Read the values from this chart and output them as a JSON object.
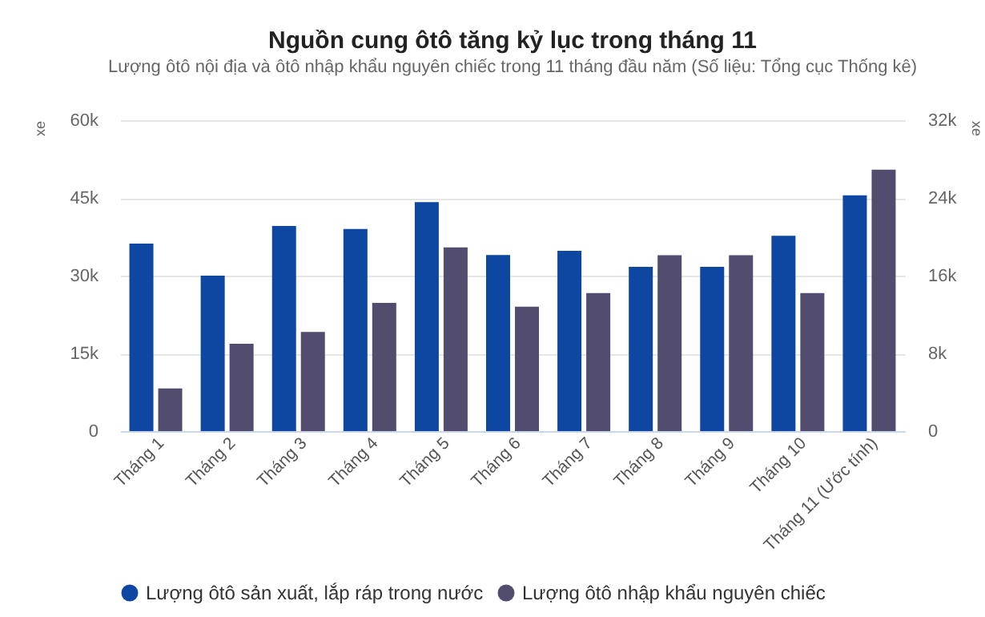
{
  "chart_data": {
    "type": "bar",
    "title": "Nguồn cung ôtô tăng kỷ lục trong tháng 11",
    "subtitle": "Lượng ôtô nội địa và ôtô nhập khẩu nguyên chiếc trong 11 tháng đầu năm (Số liệu: Tổng cục Thống kê)",
    "ylabel": "xe",
    "y2label": "xe",
    "categories": [
      "Tháng 1",
      "Tháng 2",
      "Tháng 3",
      "Tháng 4",
      "Tháng 5",
      "Tháng 6",
      "Tháng 7",
      "Tháng 8",
      "Tháng 9",
      "Tháng 10",
      "Tháng 11 (Ước tính)"
    ],
    "series": [
      {
        "name": "Lượng ôtô sản xuất, lắp ráp trong nước",
        "color": "#0d47a1",
        "values": [
          36200,
          30000,
          39600,
          39000,
          44200,
          34000,
          34800,
          31700,
          31700,
          37700,
          45500
        ]
      },
      {
        "name": "Lượng ôtô nhập khẩu nguyên chiếc",
        "color": "#524c6f",
        "axis": "y2",
        "values": [
          4400,
          9000,
          10200,
          13200,
          18900,
          12800,
          14200,
          18100,
          18100,
          14200,
          26900
        ]
      }
    ],
    "ylim": [
      0,
      60000
    ],
    "yticks": [
      {
        "value": 0,
        "label": "0"
      },
      {
        "value": 15000,
        "label": "15k"
      },
      {
        "value": 30000,
        "label": "30k"
      },
      {
        "value": 45000,
        "label": "45k"
      },
      {
        "value": 60000,
        "label": "60k"
      }
    ],
    "y2lim": [
      0,
      32000
    ],
    "y2ticks": [
      {
        "value": 0,
        "label": "0"
      },
      {
        "value": 8000,
        "label": "8k"
      },
      {
        "value": 16000,
        "label": "16k"
      },
      {
        "value": 24000,
        "label": "24k"
      },
      {
        "value": 32000,
        "label": "32k"
      }
    ],
    "grid": "y",
    "legend": "bottom"
  }
}
